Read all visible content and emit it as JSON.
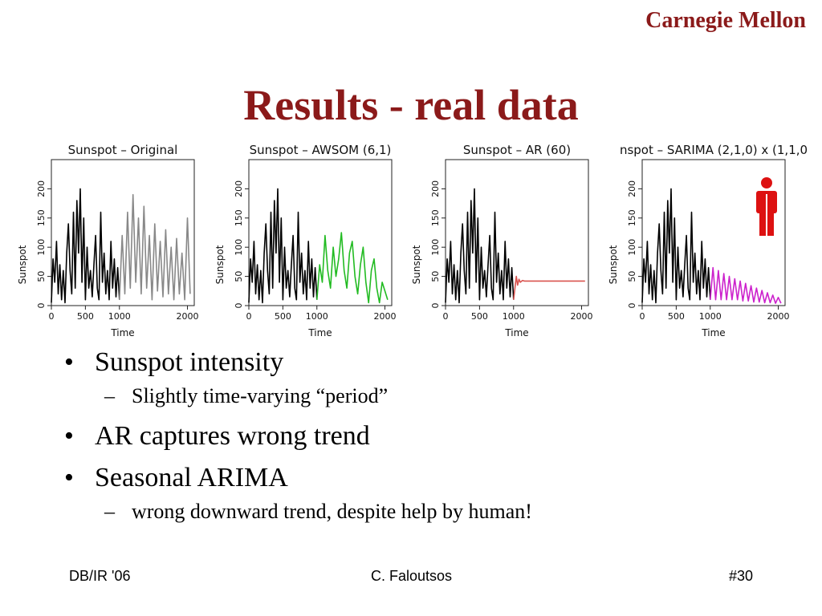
{
  "header": {
    "brand": "Carnegie Mellon"
  },
  "slide": {
    "title": "Results - real data"
  },
  "chart_data": [
    {
      "type": "line",
      "title": "Sunspot – Original",
      "xlabel": "Time",
      "ylabel": "Sunspot",
      "xlim": [
        0,
        2100
      ],
      "ylim": [
        0,
        250
      ],
      "xticks": [
        0,
        500,
        1000,
        2000
      ],
      "yticks": [
        0,
        50,
        100,
        150,
        200
      ],
      "series": [
        {
          "x": [
            0,
            25,
            50,
            75,
            100,
            125,
            150,
            175,
            200,
            225,
            250,
            275,
            300,
            325,
            350,
            375,
            400,
            425,
            450,
            475,
            500,
            525,
            550,
            575,
            600,
            625,
            650,
            675,
            700,
            725,
            750,
            775,
            800,
            825,
            850,
            875,
            900,
            925,
            950,
            975,
            1000
          ],
          "y": [
            5,
            80,
            40,
            110,
            20,
            70,
            10,
            60,
            5,
            90,
            140,
            60,
            20,
            160,
            30,
            180,
            90,
            200,
            40,
            150,
            10,
            100,
            30,
            60,
            15,
            70,
            120,
            30,
            10,
            160,
            40,
            90,
            20,
            60,
            10,
            110,
            30,
            80,
            15,
            65,
            10
          ]
        },
        {
          "x": [
            1000,
            1040,
            1080,
            1120,
            1160,
            1200,
            1240,
            1280,
            1320,
            1360,
            1400,
            1440,
            1480,
            1520,
            1560,
            1600,
            1640,
            1680,
            1720,
            1760,
            1800,
            1840,
            1880,
            1920,
            1960,
            2000,
            2040
          ],
          "y": [
            10,
            120,
            20,
            160,
            30,
            190,
            40,
            150,
            20,
            170,
            30,
            120,
            10,
            140,
            25,
            110,
            15,
            130,
            20,
            100,
            10,
            115,
            20,
            90,
            10,
            150,
            20
          ]
        }
      ]
    },
    {
      "type": "line",
      "title": "Sunspot – AWSOM (6,1)",
      "xlabel": "Time",
      "ylabel": "Sunspot",
      "xlim": [
        0,
        2100
      ],
      "ylim": [
        0,
        250
      ],
      "xticks": [
        0,
        500,
        1000,
        2000
      ],
      "yticks": [
        0,
        50,
        100,
        150,
        200
      ],
      "series": [
        {
          "x": [
            0,
            25,
            50,
            75,
            100,
            125,
            150,
            175,
            200,
            225,
            250,
            275,
            300,
            325,
            350,
            375,
            400,
            425,
            450,
            475,
            500,
            525,
            550,
            575,
            600,
            625,
            650,
            675,
            700,
            725,
            750,
            775,
            800,
            825,
            850,
            875,
            900,
            925,
            950,
            975,
            1000
          ],
          "y": [
            5,
            80,
            40,
            110,
            20,
            70,
            10,
            60,
            5,
            90,
            140,
            60,
            20,
            160,
            30,
            180,
            90,
            200,
            40,
            150,
            10,
            100,
            30,
            60,
            15,
            70,
            120,
            30,
            10,
            160,
            40,
            90,
            20,
            60,
            10,
            110,
            30,
            80,
            15,
            65,
            10
          ]
        },
        {
          "x": [
            1000,
            1040,
            1080,
            1120,
            1160,
            1200,
            1240,
            1280,
            1320,
            1360,
            1400,
            1440,
            1480,
            1520,
            1560,
            1600,
            1640,
            1680,
            1720,
            1760,
            1800,
            1840,
            1880,
            1920,
            1960,
            2000,
            2040
          ],
          "y": [
            10,
            70,
            40,
            120,
            60,
            30,
            100,
            50,
            80,
            125,
            60,
            30,
            90,
            110,
            50,
            20,
            70,
            100,
            40,
            5,
            60,
            80,
            30,
            5,
            40,
            25,
            10
          ]
        }
      ]
    },
    {
      "type": "line",
      "title": "Sunspot – AR (60)",
      "xlabel": "Time",
      "ylabel": "Sunspot",
      "xlim": [
        0,
        2100
      ],
      "ylim": [
        0,
        250
      ],
      "xticks": [
        0,
        500,
        1000,
        2000
      ],
      "yticks": [
        0,
        50,
        100,
        150,
        200
      ],
      "series": [
        {
          "x": [
            0,
            25,
            50,
            75,
            100,
            125,
            150,
            175,
            200,
            225,
            250,
            275,
            300,
            325,
            350,
            375,
            400,
            425,
            450,
            475,
            500,
            525,
            550,
            575,
            600,
            625,
            650,
            675,
            700,
            725,
            750,
            775,
            800,
            825,
            850,
            875,
            900,
            925,
            950,
            975,
            1000
          ],
          "y": [
            5,
            80,
            40,
            110,
            20,
            70,
            10,
            60,
            5,
            90,
            140,
            60,
            20,
            160,
            30,
            180,
            90,
            200,
            40,
            150,
            10,
            100,
            30,
            60,
            15,
            70,
            120,
            30,
            10,
            160,
            40,
            90,
            20,
            60,
            10,
            110,
            30,
            80,
            15,
            65,
            10
          ]
        },
        {
          "x": [
            1000,
            1020,
            1040,
            1060,
            1080,
            1100,
            1130,
            1160,
            1200,
            1300,
            1500,
            1800,
            2050
          ],
          "y": [
            10,
            30,
            50,
            35,
            45,
            40,
            43,
            42,
            42,
            42,
            42,
            42,
            42
          ]
        }
      ]
    },
    {
      "type": "line",
      "title": "nspot – SARIMA (2,1,0) x (1,1,0",
      "xlabel": "Time",
      "ylabel": "Sunspot",
      "xlim": [
        0,
        2100
      ],
      "ylim": [
        0,
        250
      ],
      "xticks": [
        0,
        500,
        1000,
        2000
      ],
      "yticks": [
        0,
        50,
        100,
        150,
        200
      ],
      "series": [
        {
          "x": [
            0,
            25,
            50,
            75,
            100,
            125,
            150,
            175,
            200,
            225,
            250,
            275,
            300,
            325,
            350,
            375,
            400,
            425,
            450,
            475,
            500,
            525,
            550,
            575,
            600,
            625,
            650,
            675,
            700,
            725,
            750,
            775,
            800,
            825,
            850,
            875,
            900,
            925,
            950,
            975,
            1000
          ],
          "y": [
            5,
            80,
            40,
            110,
            20,
            70,
            10,
            60,
            5,
            90,
            140,
            60,
            20,
            160,
            30,
            180,
            90,
            200,
            40,
            150,
            10,
            100,
            30,
            60,
            15,
            70,
            120,
            30,
            10,
            160,
            40,
            90,
            20,
            60,
            10,
            110,
            30,
            80,
            15,
            65,
            10
          ]
        },
        {
          "x": [
            1000,
            1040,
            1080,
            1120,
            1160,
            1200,
            1240,
            1280,
            1320,
            1360,
            1400,
            1440,
            1480,
            1520,
            1560,
            1600,
            1640,
            1680,
            1720,
            1760,
            1800,
            1840,
            1880,
            1920,
            1960,
            2000,
            2040
          ],
          "y": [
            10,
            65,
            10,
            60,
            10,
            55,
            10,
            50,
            10,
            46,
            10,
            42,
            8,
            38,
            8,
            34,
            6,
            30,
            6,
            26,
            5,
            22,
            5,
            18,
            4,
            14,
            4
          ]
        }
      ]
    }
  ],
  "colors": {
    "brand": "#8b1a1a",
    "series_history": "#000000",
    "original_continuation": "#888888",
    "awsom_forecast": "#22bb22",
    "ar_forecast": "#d9534f",
    "sarima_forecast": "#cc22cc",
    "human_icon": "#dd1111"
  },
  "icons": {
    "human": "human-figure-icon"
  },
  "bullets": [
    {
      "level": 1,
      "marker": "•",
      "text": "Sunspot intensity"
    },
    {
      "level": 2,
      "marker": "–",
      "text": "Slightly time-varying “period”"
    },
    {
      "level": 1,
      "marker": "•",
      "text": "AR captures wrong trend"
    },
    {
      "level": 1,
      "marker": "•",
      "text": "Seasonal ARIMA"
    },
    {
      "level": 2,
      "marker": "–",
      "text": "wrong downward trend, despite help by human!"
    }
  ],
  "footer": {
    "left": "DB/IR '06",
    "center": "C. Faloutsos",
    "right": "#30"
  }
}
